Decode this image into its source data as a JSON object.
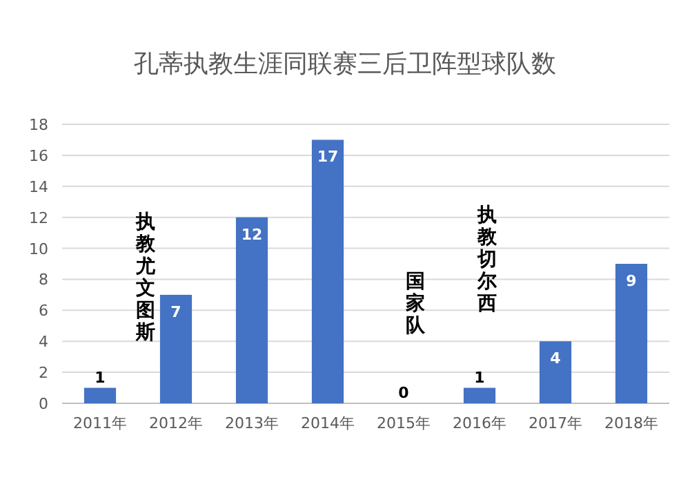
{
  "chart_data": {
    "type": "bar",
    "title": "孔蒂执教生涯同联赛三后卫阵型球队数",
    "categories": [
      "2011年",
      "2012年",
      "2013年",
      "2014年",
      "2015年",
      "2016年",
      "2017年",
      "2018年"
    ],
    "values": [
      1,
      7,
      12,
      17,
      0,
      1,
      4,
      9
    ],
    "color": "#4472c4",
    "ylim": [
      0,
      18
    ],
    "yticks": [
      0,
      2,
      4,
      6,
      8,
      10,
      12,
      14,
      16,
      18
    ],
    "grid": "y",
    "data_labels": true,
    "annotations": [
      "执教尤文图斯",
      "国家队",
      "执教切尔西"
    ]
  }
}
